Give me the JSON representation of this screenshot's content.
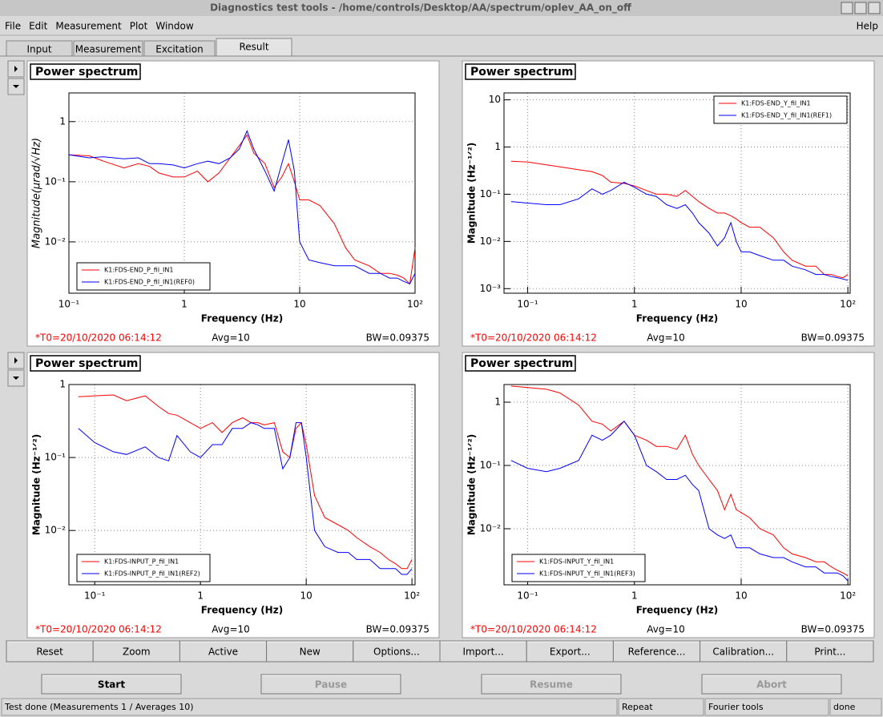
{
  "window_title": "Diagnostics test tools - /home/controls/Desktop/AA/spectrum/oplev_AA_on_off",
  "menu": [
    "File",
    "Edit",
    "Measurement",
    "Plot",
    "Window"
  ],
  "help": "Help",
  "tabs": [
    "Input",
    "Measurement",
    "Excitation",
    "Result"
  ],
  "chart_data": [
    {
      "type": "line",
      "title": "Power spectrum",
      "xlabel": "Frequency (Hz)",
      "ylabel": "Magnitude(μrad/√Hz)",
      "xscale": "log",
      "yscale": "log",
      "grid": true,
      "legend": "lower left",
      "xlim": [
        0.1,
        100
      ],
      "ylim": [
        0.0014,
        3
      ],
      "xticks": [
        {
          "value": 0.1,
          "label": "10⁻¹"
        },
        1,
        10,
        {
          "value": 100,
          "label": "10²"
        }
      ],
      "yticks": [
        {
          "value": 0.01,
          "label": "10⁻²"
        },
        {
          "value": 0.1,
          "label": "10⁻¹"
        },
        1
      ],
      "x": [
        0.1,
        0.15,
        0.2,
        0.3,
        0.4,
        0.5,
        0.6,
        0.8,
        1,
        1.3,
        1.6,
        2,
        2.5,
        3,
        3.5,
        4,
        5,
        6,
        7,
        8,
        9,
        10,
        12,
        15,
        20,
        25,
        30,
        40,
        50,
        60,
        70,
        80,
        90,
        100
      ],
      "series": [
        {
          "name": "K1:FDS-END_P_fil_IN1",
          "color": "#ff0000",
          "values": [
            0.28,
            0.27,
            0.22,
            0.17,
            0.2,
            0.18,
            0.14,
            0.12,
            0.12,
            0.15,
            0.1,
            0.14,
            0.25,
            0.4,
            0.6,
            0.3,
            0.2,
            0.08,
            0.12,
            0.2,
            0.1,
            0.05,
            0.05,
            0.04,
            0.02,
            0.008,
            0.005,
            0.004,
            0.003,
            0.003,
            0.0028,
            0.0025,
            0.002,
            0.008
          ]
        },
        {
          "name": "K1:FDS-END_P_fil_IN1(REF0)",
          "color": "#0000ff",
          "values": [
            0.28,
            0.25,
            0.26,
            0.24,
            0.25,
            0.2,
            0.2,
            0.19,
            0.17,
            0.2,
            0.22,
            0.2,
            0.25,
            0.35,
            0.7,
            0.35,
            0.15,
            0.07,
            0.2,
            0.5,
            0.15,
            0.01,
            0.005,
            0.0045,
            0.004,
            0.004,
            0.004,
            0.003,
            0.003,
            0.0025,
            0.0025,
            0.0022,
            0.002,
            0.003
          ]
        }
      ],
      "annotations": [
        "*T0=20/10/2020 06:14:12",
        "Avg=10",
        "BW=0.09375"
      ]
    },
    {
      "type": "line",
      "title": "Power spectrum",
      "xlabel": "Frequency (Hz)",
      "ylabel": "Magnitude (Hz⁻¹ᐟ²)",
      "xscale": "log",
      "yscale": "log",
      "grid": true,
      "legend": "upper right",
      "xlim": [
        0.06,
        105
      ],
      "ylim": [
        0.0008,
        14
      ],
      "xticks": [
        {
          "value": 0.1,
          "label": "10⁻¹"
        },
        1,
        10,
        {
          "value": 100,
          "label": "10²"
        }
      ],
      "yticks": [
        {
          "value": 0.001,
          "label": "10⁻³"
        },
        {
          "value": 0.01,
          "label": "10⁻²"
        },
        {
          "value": 0.1,
          "label": "10⁻¹"
        },
        1,
        10
      ],
      "x": [
        0.07,
        0.1,
        0.15,
        0.2,
        0.3,
        0.4,
        0.5,
        0.6,
        0.8,
        1,
        1.3,
        1.6,
        2,
        2.5,
        3,
        3.5,
        4,
        5,
        6,
        7,
        8,
        9,
        10,
        12,
        15,
        20,
        25,
        30,
        40,
        50,
        60,
        70,
        80,
        90,
        100
      ],
      "series": [
        {
          "name": "K1:FDS-END_Y_fil_IN1",
          "color": "#ff0000",
          "values": [
            0.5,
            0.48,
            0.42,
            0.38,
            0.33,
            0.3,
            0.25,
            0.18,
            0.17,
            0.15,
            0.12,
            0.1,
            0.1,
            0.09,
            0.12,
            0.09,
            0.07,
            0.05,
            0.04,
            0.04,
            0.035,
            0.03,
            0.025,
            0.02,
            0.02,
            0.012,
            0.006,
            0.004,
            0.003,
            0.003,
            0.002,
            0.002,
            0.0018,
            0.0017,
            0.002
          ]
        },
        {
          "name": "K1:FDS-END_Y_fil_IN1(REF1)",
          "color": "#0000ff",
          "values": [
            0.07,
            0.065,
            0.06,
            0.06,
            0.08,
            0.13,
            0.1,
            0.12,
            0.18,
            0.14,
            0.1,
            0.09,
            0.06,
            0.05,
            0.06,
            0.04,
            0.025,
            0.015,
            0.008,
            0.012,
            0.025,
            0.01,
            0.006,
            0.006,
            0.005,
            0.004,
            0.004,
            0.003,
            0.0025,
            0.002,
            0.002,
            0.0018,
            0.0017,
            0.0016,
            0.0015
          ]
        }
      ],
      "annotations": [
        "*T0=20/10/2020 06:14:12",
        "Avg=10",
        "BW=0.09375"
      ]
    },
    {
      "type": "line",
      "title": "Power spectrum",
      "xlabel": "Frequency (Hz)",
      "ylabel": "Magnitude (Hz⁻¹ᐟ²)",
      "xscale": "log",
      "yscale": "log",
      "grid": true,
      "legend": "lower left",
      "xlim": [
        0.057,
        107
      ],
      "ylim": [
        0.0018,
        1
      ],
      "xticks": [
        {
          "value": 0.1,
          "label": "10⁻¹"
        },
        1,
        10,
        {
          "value": 100,
          "label": "10²"
        }
      ],
      "yticks": [
        {
          "value": 0.01,
          "label": "10⁻²"
        },
        {
          "value": 0.1,
          "label": "10⁻¹"
        },
        1
      ],
      "x": [
        0.07,
        0.1,
        0.15,
        0.2,
        0.3,
        0.4,
        0.5,
        0.6,
        0.8,
        1,
        1.3,
        1.6,
        2,
        2.5,
        3,
        3.5,
        4,
        5,
        6,
        7,
        8,
        9,
        10,
        12,
        15,
        20,
        25,
        30,
        40,
        50,
        60,
        70,
        80,
        90,
        100
      ],
      "series": [
        {
          "name": "K1:FDS-INPUT_P_fil_IN1",
          "color": "#ff0000",
          "values": [
            0.68,
            0.7,
            0.72,
            0.6,
            0.7,
            0.5,
            0.4,
            0.38,
            0.3,
            0.25,
            0.3,
            0.22,
            0.3,
            0.35,
            0.3,
            0.3,
            0.28,
            0.3,
            0.12,
            0.1,
            0.25,
            0.3,
            0.15,
            0.03,
            0.015,
            0.012,
            0.01,
            0.008,
            0.006,
            0.005,
            0.004,
            0.0035,
            0.003,
            0.003,
            0.004
          ]
        },
        {
          "name": "K1:FDS-INPUT_P_fil_IN1(REF2)",
          "color": "#0000ff",
          "values": [
            0.25,
            0.16,
            0.12,
            0.11,
            0.14,
            0.1,
            0.09,
            0.2,
            0.12,
            0.1,
            0.15,
            0.15,
            0.25,
            0.25,
            0.3,
            0.28,
            0.25,
            0.25,
            0.07,
            0.1,
            0.3,
            0.3,
            0.1,
            0.01,
            0.006,
            0.005,
            0.005,
            0.004,
            0.004,
            0.003,
            0.003,
            0.003,
            0.0025,
            0.0025,
            0.003
          ]
        }
      ],
      "annotations": [
        "*T0=20/10/2020 06:14:12",
        "Avg=10",
        "BW=0.09375"
      ]
    },
    {
      "type": "line",
      "title": "Power spectrum",
      "xlabel": "Frequency (Hz)",
      "ylabel": "Magnitude (Hz⁻¹ᐟ²)",
      "xscale": "log",
      "yscale": "log",
      "grid": true,
      "legend": "lower left",
      "xlim": [
        0.06,
        105
      ],
      "ylim": [
        0.0013,
        1.9
      ],
      "xticks": [
        {
          "value": 0.1,
          "label": "10⁻¹"
        },
        1,
        10,
        {
          "value": 100,
          "label": "10²"
        }
      ],
      "yticks": [
        {
          "value": 0.01,
          "label": "10⁻²"
        },
        {
          "value": 0.1,
          "label": "10⁻¹"
        },
        1
      ],
      "x": [
        0.07,
        0.1,
        0.15,
        0.2,
        0.3,
        0.4,
        0.5,
        0.6,
        0.8,
        1,
        1.3,
        1.6,
        2,
        2.5,
        3,
        3.5,
        4,
        5,
        6,
        7,
        8,
        9,
        10,
        12,
        15,
        20,
        25,
        30,
        40,
        50,
        60,
        70,
        80,
        90,
        100
      ],
      "series": [
        {
          "name": "K1:FDS-INPUT_Y_fil_IN1",
          "color": "#ff0000",
          "values": [
            1.8,
            1.7,
            1.6,
            1.4,
            0.9,
            0.5,
            0.45,
            0.35,
            0.5,
            0.3,
            0.25,
            0.2,
            0.2,
            0.18,
            0.3,
            0.15,
            0.1,
            0.06,
            0.04,
            0.02,
            0.035,
            0.02,
            0.018,
            0.015,
            0.01,
            0.008,
            0.005,
            0.004,
            0.0035,
            0.003,
            0.003,
            0.0025,
            0.0022,
            0.002,
            0.0018
          ]
        },
        {
          "name": "K1:FDS-INPUT_Y_fil_IN1(REF3)",
          "color": "#0000ff",
          "values": [
            0.12,
            0.09,
            0.08,
            0.09,
            0.12,
            0.3,
            0.25,
            0.3,
            0.5,
            0.3,
            0.1,
            0.08,
            0.06,
            0.06,
            0.07,
            0.05,
            0.04,
            0.01,
            0.008,
            0.007,
            0.008,
            0.005,
            0.005,
            0.005,
            0.004,
            0.0035,
            0.0035,
            0.003,
            0.0025,
            0.0025,
            0.002,
            0.002,
            0.002,
            0.0018,
            0.0015
          ]
        }
      ],
      "annotations": [
        "*T0=20/10/2020 06:14:12",
        "Avg=10",
        "BW=0.09375"
      ]
    }
  ],
  "panel_buttons": [
    "Reset",
    "Zoom",
    "Active",
    "New",
    "Options...",
    "Import...",
    "Export...",
    "Reference...",
    "Calibration...",
    "Print..."
  ],
  "control_buttons": [
    "Start",
    "Pause",
    "Resume",
    "Abort"
  ],
  "status": [
    "Test done (Measurements 1 / Averages 10)",
    "Repeat",
    "Fourier tools",
    "done"
  ]
}
